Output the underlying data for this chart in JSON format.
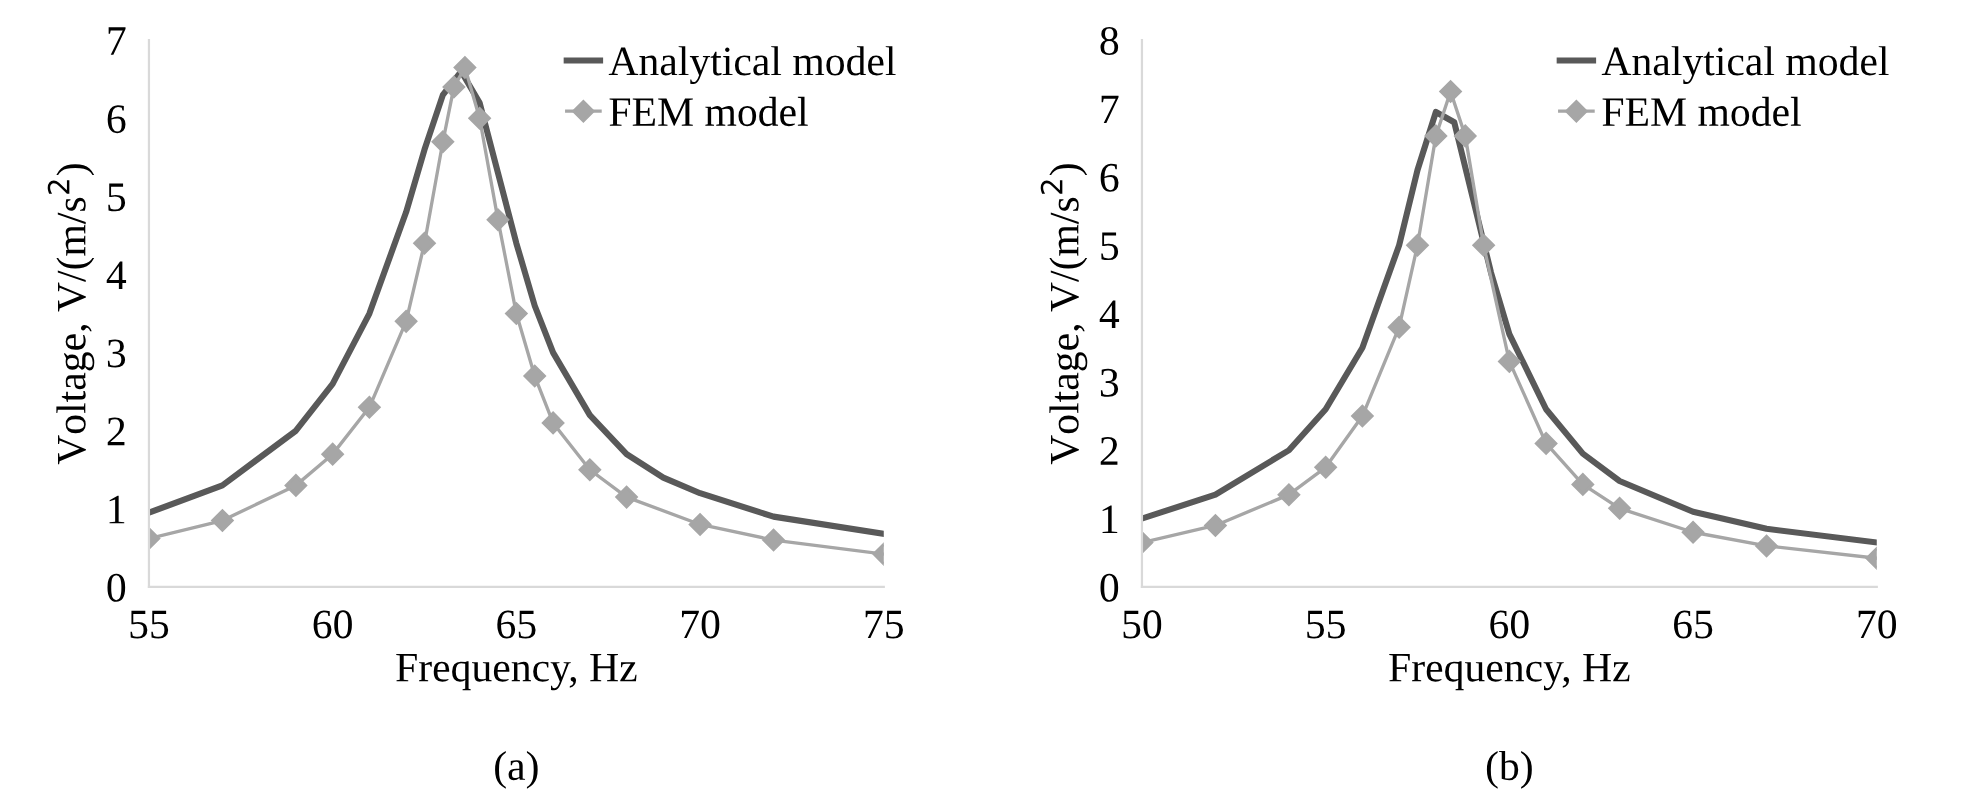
{
  "chart_data": [
    {
      "type": "line",
      "xlabel": "Frequency, Hz",
      "ylabel": "Voltage, V/(m/s$^{2}$)",
      "xlim": [
        55,
        75
      ],
      "xticks": [
        55,
        60,
        65,
        70,
        75
      ],
      "ylim": [
        0,
        7
      ],
      "yticks": [
        0,
        1,
        2,
        3,
        4,
        5,
        6,
        7
      ],
      "grid": false,
      "legend": "top right",
      "annotations": [
        "(a)"
      ],
      "series": [
        {
          "name": "Analytical model",
          "color": "#595959",
          "marker": "none",
          "x": [
            55,
            57,
            59,
            60,
            61,
            62,
            62.5,
            63,
            63.5,
            64,
            64.5,
            65,
            65.5,
            66,
            67,
            68,
            69,
            70,
            72,
            75
          ],
          "values": [
            0.95,
            1.3,
            2.0,
            2.6,
            3.5,
            4.8,
            5.6,
            6.3,
            6.6,
            6.2,
            5.3,
            4.4,
            3.6,
            3.0,
            2.2,
            1.7,
            1.4,
            1.2,
            0.9,
            0.68
          ]
        },
        {
          "name": "FEM model",
          "color": "#a6a6a6",
          "marker": "diamond",
          "x": [
            55,
            57,
            59,
            60,
            61,
            62,
            62.5,
            63,
            63.3,
            63.6,
            64,
            64.5,
            65,
            65.5,
            66,
            67,
            68,
            70,
            72,
            75
          ],
          "values": [
            0.62,
            0.85,
            1.3,
            1.7,
            2.3,
            3.4,
            4.4,
            5.7,
            6.4,
            6.65,
            6.0,
            4.7,
            3.5,
            2.7,
            2.1,
            1.5,
            1.15,
            0.8,
            0.6,
            0.42
          ]
        }
      ]
    },
    {
      "type": "line",
      "xlabel": "Frequency, Hz",
      "ylabel": "Voltage, V/(m/s$^{2}$)",
      "xlim": [
        50,
        70
      ],
      "xticks": [
        50,
        55,
        60,
        65,
        70
      ],
      "ylim": [
        0,
        8
      ],
      "yticks": [
        0,
        1,
        2,
        3,
        4,
        5,
        6,
        7,
        8
      ],
      "grid": false,
      "legend": "top right",
      "annotations": [
        "(b)"
      ],
      "series": [
        {
          "name": "Analytical model",
          "color": "#595959",
          "marker": "none",
          "x": [
            50,
            52,
            54,
            55,
            56,
            57,
            57.5,
            58,
            58.5,
            59,
            59.5,
            60,
            61,
            62,
            63,
            65,
            67,
            70
          ],
          "values": [
            1.0,
            1.35,
            2.0,
            2.6,
            3.5,
            5.0,
            6.1,
            6.95,
            6.8,
            5.7,
            4.6,
            3.7,
            2.6,
            1.95,
            1.55,
            1.1,
            0.85,
            0.65
          ]
        },
        {
          "name": "FEM model",
          "color": "#a6a6a6",
          "marker": "diamond",
          "x": [
            50,
            52,
            54,
            55,
            56,
            57,
            57.5,
            58,
            58.4,
            58.8,
            59.3,
            60,
            61,
            62,
            63,
            65,
            67,
            70
          ],
          "values": [
            0.65,
            0.9,
            1.35,
            1.75,
            2.5,
            3.8,
            5.0,
            6.6,
            7.25,
            6.6,
            5.0,
            3.3,
            2.1,
            1.5,
            1.15,
            0.8,
            0.6,
            0.42
          ]
        }
      ]
    }
  ]
}
